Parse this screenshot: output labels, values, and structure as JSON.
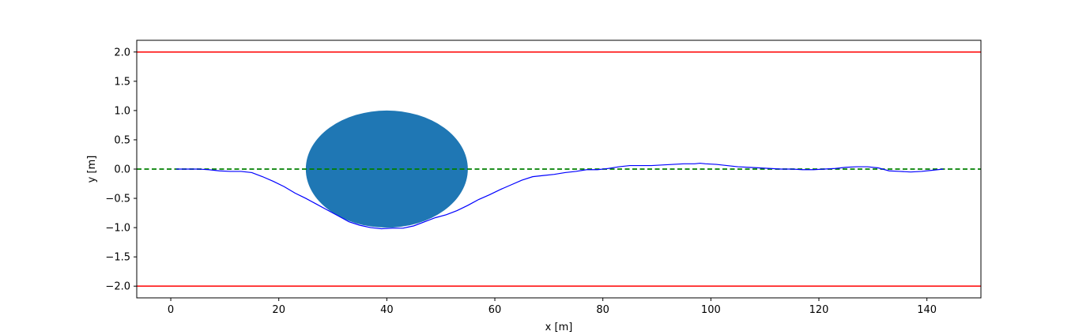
{
  "chart_data": {
    "type": "line",
    "title": "",
    "xlabel": "x [m]",
    "ylabel": "y [m]",
    "xlim": [
      -6.3,
      150
    ],
    "ylim": [
      -2.2,
      2.2
    ],
    "xticks": [
      0,
      20,
      40,
      60,
      80,
      100,
      120,
      140
    ],
    "xtick_labels": [
      "0",
      "20",
      "40",
      "60",
      "80",
      "100",
      "120",
      "140"
    ],
    "yticks": [
      2.0,
      1.5,
      1.0,
      0.5,
      0.0,
      -0.5,
      -1.0,
      -1.5,
      -2.0
    ],
    "ytick_labels": [
      "2.0",
      "1.5",
      "1.0",
      "0.5",
      "0.0",
      "−0.5",
      "−1.0",
      "−1.5",
      "−2.0"
    ],
    "grid": false,
    "legend": "none",
    "boundaries": [
      {
        "y": 2.0,
        "color": "#ff0000",
        "style": "solid"
      },
      {
        "y": -2.0,
        "color": "#ff0000",
        "style": "solid"
      }
    ],
    "reference_line": {
      "y": 0.0,
      "color": "#008000",
      "style": "dashed"
    },
    "obstacle": {
      "shape": "circle",
      "center": [
        40,
        0
      ],
      "radius": 1.0,
      "color": "#1f77b4"
    },
    "trajectory": {
      "color": "#0000ff",
      "x": [
        1,
        3,
        5,
        7,
        9,
        11,
        13,
        15,
        17,
        19,
        21,
        23,
        25,
        27,
        29,
        31,
        33,
        35,
        37,
        39,
        41,
        43,
        45,
        47,
        49,
        51,
        53,
        55,
        57,
        59,
        61,
        63,
        65,
        67,
        69,
        71,
        73,
        75,
        77,
        79,
        81,
        83,
        85,
        87,
        89,
        91,
        93,
        95,
        97,
        98,
        99,
        101,
        103,
        105,
        107,
        109,
        111,
        113,
        115,
        117,
        119,
        121,
        123,
        125,
        127,
        129,
        131,
        133,
        135,
        137,
        139,
        141,
        143
      ],
      "y": [
        0.0,
        0.0,
        0.0,
        -0.01,
        -0.03,
        -0.04,
        -0.04,
        -0.06,
        -0.13,
        -0.21,
        -0.3,
        -0.41,
        -0.5,
        -0.6,
        -0.7,
        -0.8,
        -0.9,
        -0.96,
        -1.0,
        -1.02,
        -1.01,
        -1.01,
        -0.97,
        -0.9,
        -0.83,
        -0.78,
        -0.71,
        -0.62,
        -0.52,
        -0.44,
        -0.35,
        -0.27,
        -0.19,
        -0.13,
        -0.11,
        -0.09,
        -0.06,
        -0.04,
        -0.01,
        -0.01,
        0.01,
        0.04,
        0.06,
        0.06,
        0.06,
        0.07,
        0.08,
        0.09,
        0.09,
        0.1,
        0.09,
        0.08,
        0.06,
        0.04,
        0.03,
        0.02,
        0.01,
        0.0,
        0.0,
        -0.01,
        -0.01,
        0.0,
        0.01,
        0.03,
        0.04,
        0.04,
        0.02,
        -0.03,
        -0.04,
        -0.05,
        -0.04,
        -0.02,
        0.0
      ]
    }
  }
}
